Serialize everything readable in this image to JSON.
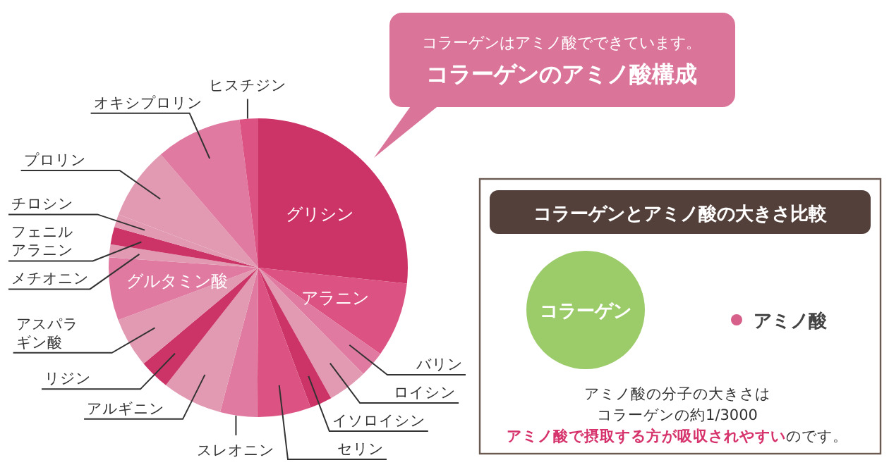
{
  "chart_data": [
    {
      "type": "pie",
      "title": "コラーゲンのアミノ酸構成",
      "subtitle": "コラーゲンはアミノ酸でできています。",
      "categories": [
        "グリシン",
        "アラニン",
        "バリン",
        "ロイシン",
        "イソロイシン",
        "セリン",
        "スレオニン",
        "アルギニン",
        "リジン",
        "アスパラギン酸",
        "グルタミン酸",
        "メチオニン",
        "フェニルアラニン",
        "チロシン",
        "プロリン",
        "オキシプロリン",
        "ヒスチジン"
      ],
      "values": [
        26.7,
        8.1,
        2.8,
        4.3,
        2.4,
        5.8,
        4.0,
        6.5,
        3.3,
        5.4,
        6.8,
        1.4,
        1.9,
        1.4,
        7.9,
        9.3,
        2.0
      ],
      "colors": [
        "#cc3366",
        "#dc5282",
        "#e07aa0",
        "#e29ab2",
        "#cc3366",
        "#dc5282",
        "#e07aa0",
        "#e29ab2",
        "#cc3366",
        "#e29ab2",
        "#e07aa0",
        "#e29ab2",
        "#cc3366",
        "#e29ab2",
        "#e29ab2",
        "#e07aa0",
        "#dc5282"
      ]
    },
    {
      "type": "other",
      "title": "コラーゲンとアミノ酸の大きさ比較",
      "annotations": [
        "コラーゲン",
        "アミノ酸",
        "アミノ酸の分子の大きさは",
        "コラーゲンの約1/3000",
        "**アミノ酸で摂取する方が吸収されやすい**のです。"
      ]
    }
  ]
}
